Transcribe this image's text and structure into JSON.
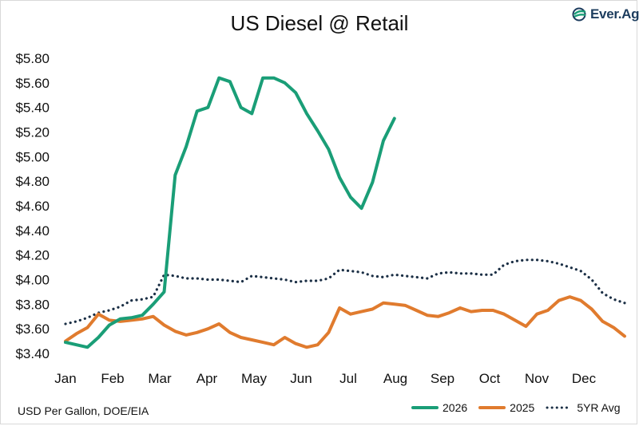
{
  "title": "US Diesel @ Retail",
  "source_note": "USD Per Gallon, DOE/EIA",
  "logo": {
    "text": "Ever.Ag",
    "icon": "ever-ag-logo-icon",
    "color": "#1d3d5e",
    "accent": "#1a9e77"
  },
  "chart_data": {
    "type": "line",
    "title": "US Diesel @ Retail",
    "xlabel": "",
    "ylabel": "",
    "x_unit": "week of year (52 weeks)",
    "ylim": [
      3.4,
      5.8
    ],
    "y_ticks": [
      "$3.40",
      "$3.60",
      "$3.80",
      "$4.00",
      "$4.20",
      "$4.40",
      "$4.60",
      "$4.80",
      "$5.00",
      "$5.20",
      "$5.40",
      "$5.60",
      "$5.80"
    ],
    "months": [
      "Jan",
      "Feb",
      "Mar",
      "Apr",
      "May",
      "Jun",
      "Jul",
      "Aug",
      "Sep",
      "Oct",
      "Nov",
      "Dec"
    ],
    "grid": false,
    "legend_position": "bottom-right",
    "series": [
      {
        "name": "2026",
        "color": "#1a9e77",
        "style": "solid",
        "values": [
          3.49,
          3.47,
          3.45,
          3.53,
          3.63,
          3.68,
          3.69,
          3.71,
          3.8,
          3.9,
          4.85,
          5.08,
          5.37,
          5.4,
          5.64,
          5.61,
          5.4,
          5.35,
          5.64,
          5.64,
          5.6,
          5.52,
          5.35,
          5.21,
          5.06,
          4.83,
          4.67,
          4.58,
          4.79,
          5.13,
          5.31
        ]
      },
      {
        "name": "2025",
        "color": "#e07b2e",
        "style": "solid",
        "values": [
          3.5,
          3.56,
          3.61,
          3.72,
          3.67,
          3.66,
          3.67,
          3.68,
          3.7,
          3.63,
          3.58,
          3.55,
          3.57,
          3.6,
          3.64,
          3.57,
          3.53,
          3.51,
          3.49,
          3.47,
          3.53,
          3.48,
          3.45,
          3.47,
          3.57,
          3.77,
          3.72,
          3.74,
          3.76,
          3.81,
          3.8,
          3.79,
          3.75,
          3.71,
          3.7,
          3.73,
          3.77,
          3.74,
          3.75,
          3.75,
          3.72,
          3.67,
          3.62,
          3.72,
          3.75,
          3.83,
          3.86,
          3.83,
          3.76,
          3.66,
          3.61,
          3.54
        ]
      },
      {
        "name": "5YR Avg",
        "color": "#1b2f45",
        "style": "dotted",
        "values": [
          3.64,
          3.66,
          3.69,
          3.73,
          3.75,
          3.78,
          3.83,
          3.84,
          3.86,
          4.04,
          4.03,
          4.01,
          4.01,
          4.0,
          4.0,
          3.99,
          3.98,
          4.03,
          4.02,
          4.01,
          4.0,
          3.98,
          3.99,
          3.99,
          4.01,
          4.08,
          4.07,
          4.06,
          4.03,
          4.02,
          4.04,
          4.03,
          4.02,
          4.01,
          4.05,
          4.06,
          4.05,
          4.05,
          4.04,
          4.04,
          4.12,
          4.15,
          4.16,
          4.16,
          4.15,
          4.13,
          4.1,
          4.07,
          4.0,
          3.89,
          3.84,
          3.81
        ]
      }
    ]
  }
}
